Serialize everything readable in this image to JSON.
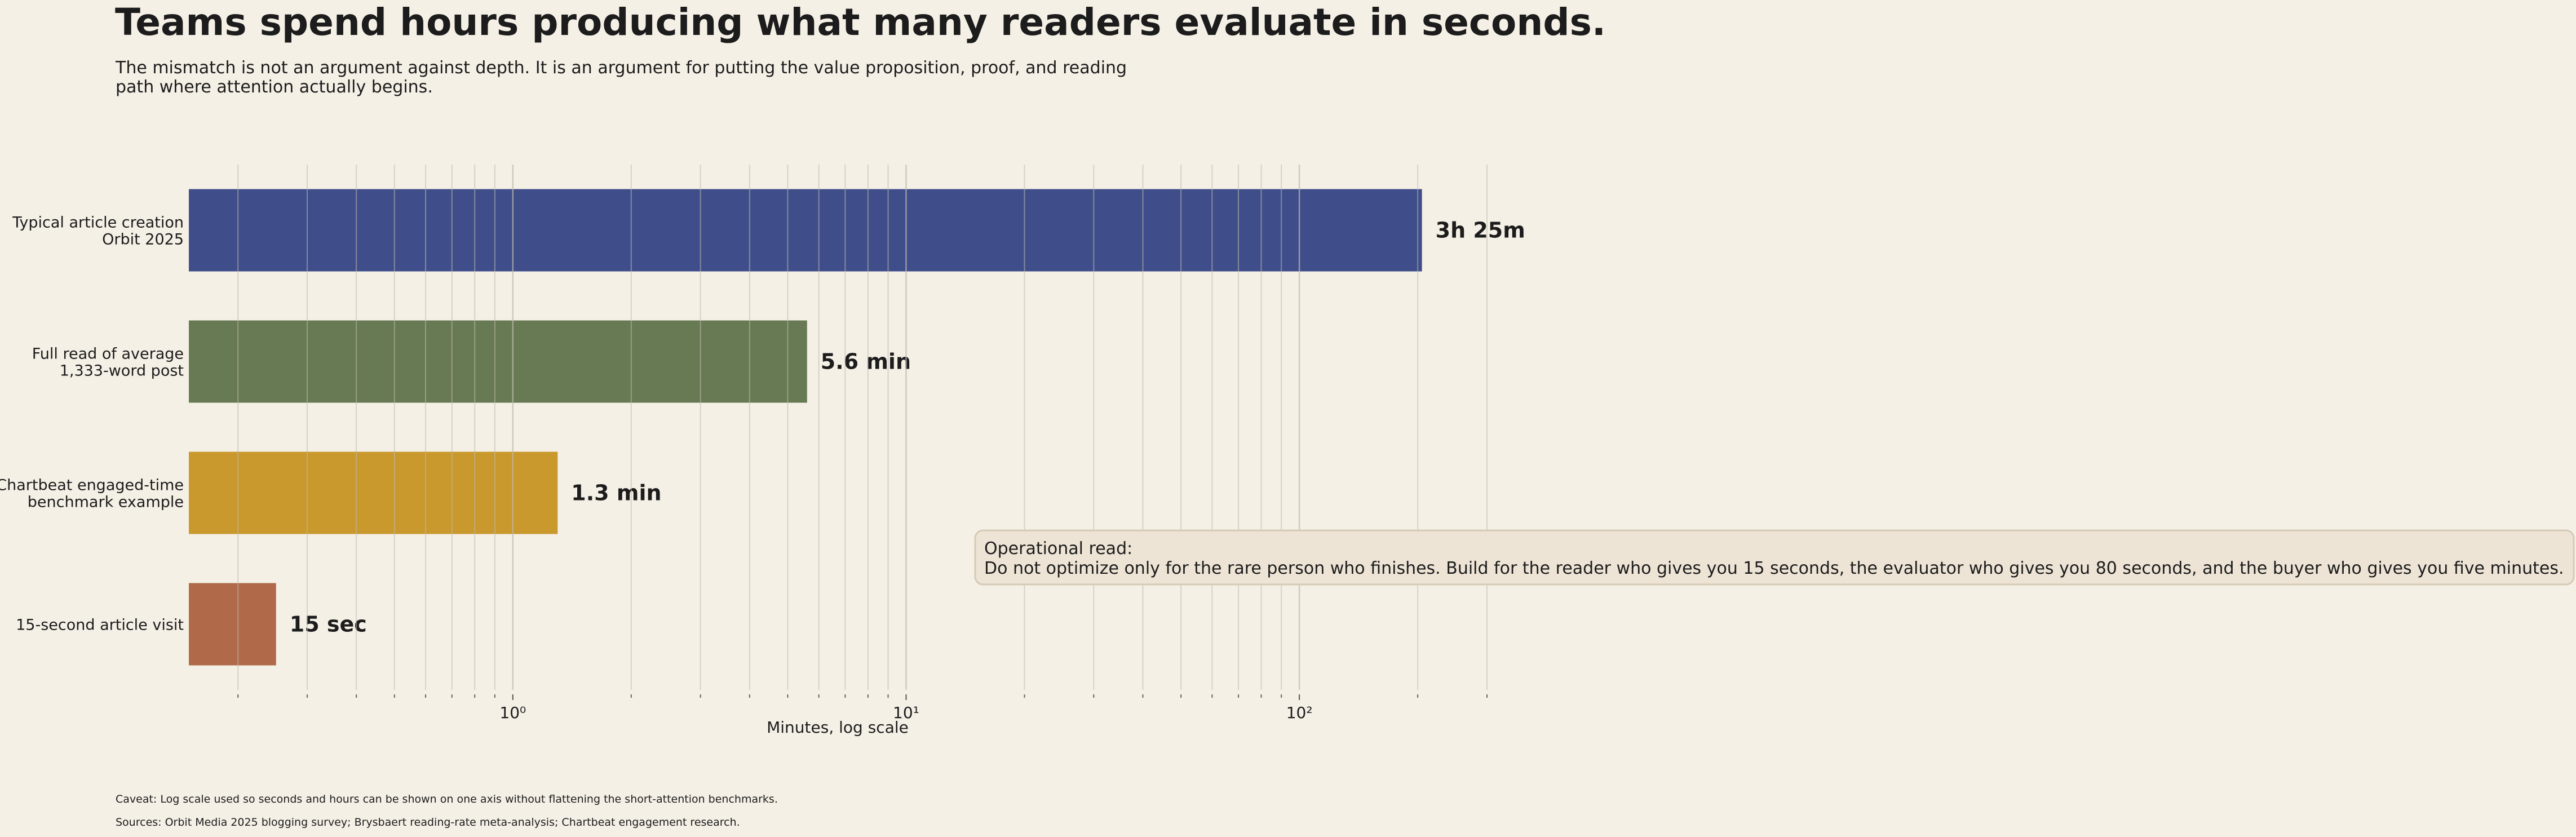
{
  "chart_data": {
    "type": "bar",
    "orientation": "horizontal",
    "title": "Teams spend hours producing what many readers evaluate in seconds.",
    "subtitle": "The mismatch is not an argument against depth. It is an argument for putting the value proposition, proof, and reading\npath where attention actually begins.",
    "categories": [
      "Typical article creation\nOrbit 2025",
      "Full read of average\n1,333-word post",
      "Chartbeat engaged-time\nbenchmark example",
      "15-second article visit"
    ],
    "values": [
      205,
      5.6,
      1.3,
      0.25
    ],
    "value_labels": [
      "3h 25m",
      "5.6 min",
      "1.3 min",
      "15 sec"
    ],
    "colors": [
      "#3f4e8a",
      "#687a53",
      "#c9992e",
      "#b06a4a"
    ],
    "x_label": "Minutes, log scale",
    "log_scale": true,
    "xlim": [
      0.15,
      300
    ],
    "xticks": [
      {
        "value": 1,
        "label": "10⁰"
      },
      {
        "value": 10,
        "label": "10¹"
      },
      {
        "value": 100,
        "label": "10²"
      }
    ],
    "minor_xticks": [
      0.2,
      0.3,
      0.4,
      0.5,
      0.6,
      0.7,
      0.8,
      0.9,
      2,
      3,
      4,
      5,
      6,
      7,
      8,
      9,
      20,
      30,
      40,
      50,
      60,
      70,
      80,
      90,
      200,
      300
    ],
    "grid": true,
    "annotation": "Operational read:\nDo not optimize only for the rare person who finishes. Build for the reader who gives you 15 seconds, the evaluator who gives you 80 seconds, and the buyer who gives you five minutes.",
    "notes": [
      "Caveat: Log scale used so seconds and hours can be shown on one axis without flattening the short-attention benchmarks.",
      "Sources: Orbit Media 2025 blogging survey; Brysbaert reading-rate meta-analysis; Chartbeat engagement research."
    ]
  }
}
